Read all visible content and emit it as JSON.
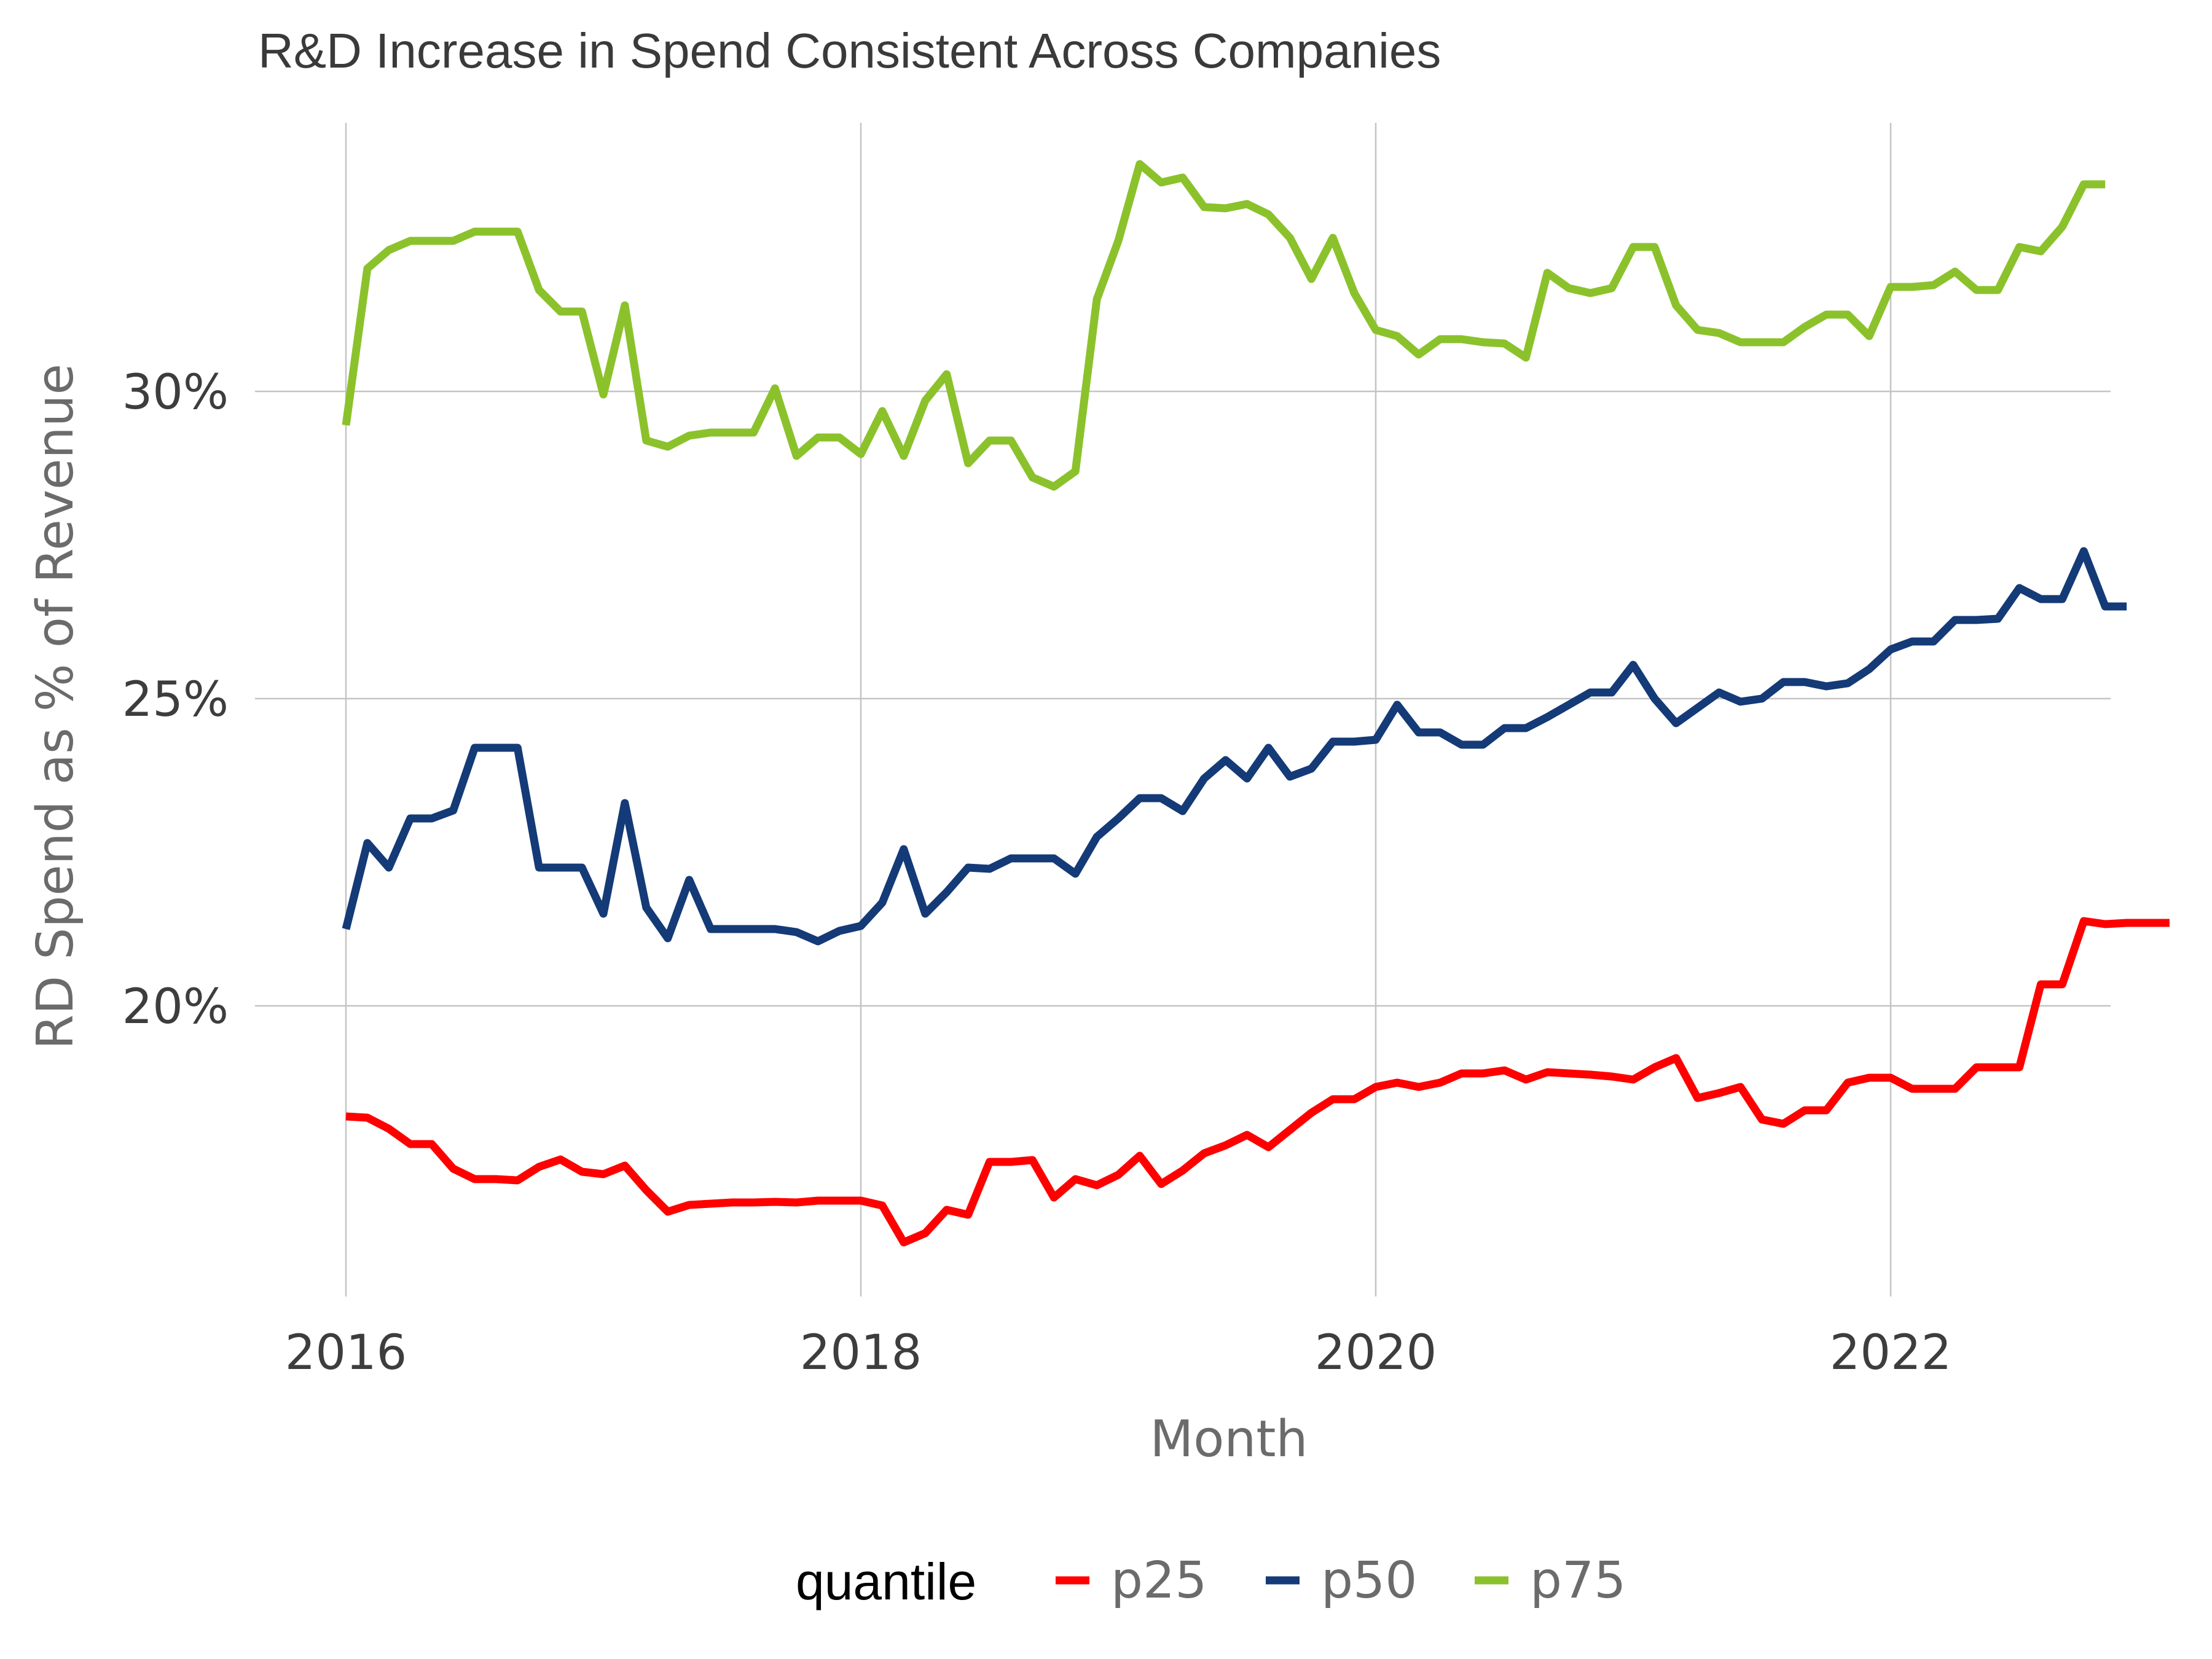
{
  "chart_data": {
    "type": "line",
    "title": "R&D Increase in Spend Consistent Across Companies",
    "xlabel": "Month",
    "ylabel": "RD Spend as % of Revenue",
    "xlim": [
      2015.6,
      2023.0
    ],
    "ylim": [
      0.154,
      0.338
    ],
    "x_ticks": [
      2016,
      2018,
      2020,
      2022
    ],
    "x_tick_labels": [
      "2016",
      "2018",
      "2020",
      "2022"
    ],
    "y_ticks": [
      0.2,
      0.25,
      0.3
    ],
    "y_tick_labels": [
      "20%",
      "25%",
      "30%"
    ],
    "grid": true,
    "legend": {
      "title": "quantile",
      "position": "bottom"
    },
    "x_start": "2016-01",
    "x_step_months": 1,
    "series": [
      {
        "name": "p25",
        "color": "#ff0000",
        "values": [
          0.182,
          0.1818,
          0.18,
          0.1775,
          0.1775,
          0.1735,
          0.1718,
          0.1718,
          0.1716,
          0.1738,
          0.175,
          0.173,
          0.1726,
          0.174,
          0.17,
          0.1665,
          0.1676,
          0.1678,
          0.168,
          0.168,
          0.1681,
          0.168,
          0.1683,
          0.1683,
          0.1683,
          0.1675,
          0.1615,
          0.163,
          0.1668,
          0.166,
          0.1746,
          0.1746,
          0.1749,
          0.1688,
          0.1718,
          0.1708,
          0.1725,
          0.1756,
          0.171,
          0.1732,
          0.176,
          0.1773,
          0.179,
          0.177,
          0.1798,
          0.1826,
          0.1848,
          0.1848,
          0.1868,
          0.1875,
          0.1868,
          0.1875,
          0.189,
          0.189,
          0.1895,
          0.188,
          0.1892,
          0.189,
          0.1888,
          0.1885,
          0.188,
          0.19,
          0.1915,
          0.185,
          0.1858,
          0.1868,
          0.1815,
          0.1808,
          0.183,
          0.183,
          0.1875,
          0.1883,
          0.1883,
          0.1865,
          0.1865,
          0.1865,
          0.19,
          0.19,
          0.19,
          0.2035,
          0.2035,
          0.2138,
          0.2133,
          0.2135,
          0.2135,
          0.2135
        ]
      },
      {
        "name": "p50",
        "color": "#143a77",
        "values": [
          0.2125,
          0.2265,
          0.2225,
          0.2305,
          0.2305,
          0.2318,
          0.242,
          0.242,
          0.242,
          0.2225,
          0.2225,
          0.2225,
          0.215,
          0.233,
          0.216,
          0.211,
          0.2205,
          0.2125,
          0.2125,
          0.2125,
          0.2125,
          0.212,
          0.2105,
          0.2122,
          0.213,
          0.2168,
          0.2255,
          0.215,
          0.2185,
          0.2225,
          0.2223,
          0.224,
          0.224,
          0.224,
          0.2215,
          0.2275,
          0.2305,
          0.2338,
          0.2338,
          0.2317,
          0.237,
          0.24,
          0.237,
          0.242,
          0.2373,
          0.2386,
          0.243,
          0.243,
          0.2433,
          0.249,
          0.2445,
          0.2445,
          0.2425,
          0.2425,
          0.2452,
          0.2452,
          0.247,
          0.249,
          0.251,
          0.251,
          0.2555,
          0.25,
          0.246,
          0.2485,
          0.251,
          0.2495,
          0.25,
          0.2527,
          0.2527,
          0.252,
          0.2525,
          0.2548,
          0.258,
          0.2593,
          0.2593,
          0.2628,
          0.2628,
          0.263,
          0.268,
          0.2662,
          0.2662,
          0.274,
          0.265,
          0.265
        ]
      },
      {
        "name": "p75",
        "color": "#8bc22c",
        "values": [
          0.2945,
          0.32,
          0.323,
          0.3245,
          0.3245,
          0.3245,
          0.326,
          0.326,
          0.326,
          0.3165,
          0.313,
          0.313,
          0.2995,
          0.314,
          0.292,
          0.291,
          0.2928,
          0.2933,
          0.2933,
          0.2933,
          0.3005,
          0.2895,
          0.2925,
          0.2925,
          0.2898,
          0.2968,
          0.2895,
          0.2985,
          0.3028,
          0.2883,
          0.292,
          0.292,
          0.286,
          0.2845,
          0.287,
          0.315,
          0.3245,
          0.337,
          0.334,
          0.3348,
          0.33,
          0.3298,
          0.3305,
          0.3288,
          0.325,
          0.3183,
          0.325,
          0.316,
          0.31,
          0.309,
          0.306,
          0.3085,
          0.3085,
          0.308,
          0.3078,
          0.3055,
          0.3193,
          0.3168,
          0.316,
          0.3168,
          0.3235,
          0.3235,
          0.314,
          0.31,
          0.3095,
          0.308,
          0.308,
          0.308,
          0.3105,
          0.3125,
          0.3125,
          0.309,
          0.317,
          0.317,
          0.3173,
          0.3195,
          0.3165,
          0.3165,
          0.3235,
          0.3228,
          0.3268,
          0.3337,
          0.3337
        ]
      }
    ]
  }
}
